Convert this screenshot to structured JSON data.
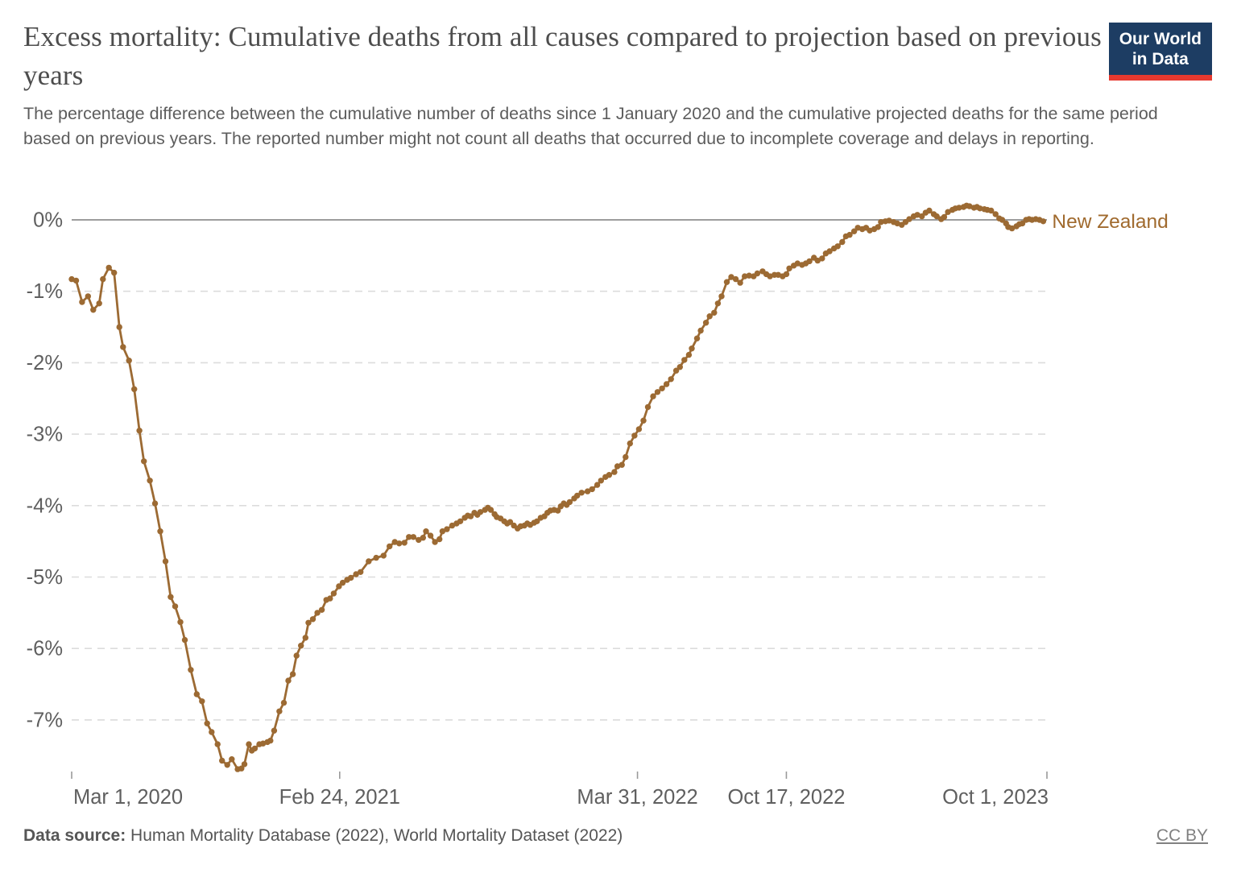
{
  "header": {
    "title": "Excess mortality: Cumulative deaths from all causes compared to projection based on previous years",
    "subtitle": "The percentage difference between the cumulative number of deaths since 1 January 2020 and the cumulative projected deaths for the same period based on previous years. The reported number might not count all deaths that occurred due to incomplete coverage and delays in reporting."
  },
  "logo": {
    "line1": "Our World",
    "line2": "in Data",
    "bg_color": "#1d3d63",
    "accent_color": "#e6392f"
  },
  "footer": {
    "data_source_label": "Data source:",
    "data_source_text": " Human Mortality Database (2022), World Mortality Dataset (2022)",
    "license": "CC BY"
  },
  "chart_data": {
    "type": "line",
    "title": "Excess mortality: Cumulative deaths from all causes compared to projection based on previous years",
    "xlabel": "",
    "ylabel": "",
    "x_unit": "days since 2020-03-01",
    "xlim_days": [
      0,
      1310
    ],
    "ylim": [
      -7.95,
      0.4
    ],
    "grid": "horizontal-dashed",
    "zero_line_color": "#8f8f8f",
    "grid_color": "#dcdcdc",
    "axis_text_color": "#5f5f5f",
    "y_ticks": [
      {
        "value": 0,
        "label": "0%"
      },
      {
        "value": -1,
        "label": "-1%"
      },
      {
        "value": -2,
        "label": "-2%"
      },
      {
        "value": -3,
        "label": "-3%"
      },
      {
        "value": -4,
        "label": "-4%"
      },
      {
        "value": -5,
        "label": "-5%"
      },
      {
        "value": -6,
        "label": "-6%"
      },
      {
        "value": -7,
        "label": "-7%"
      }
    ],
    "x_ticks": [
      {
        "day": 0,
        "label": "Mar 1, 2020",
        "anchor": "start"
      },
      {
        "day": 360,
        "label": "Feb 24, 2021",
        "anchor": "middle"
      },
      {
        "day": 760,
        "label": "Mar 31, 2022",
        "anchor": "middle"
      },
      {
        "day": 960,
        "label": "Oct 17, 2022",
        "anchor": "middle"
      },
      {
        "day": 1310,
        "label": "Oct 1, 2023",
        "anchor": "end"
      }
    ],
    "series": [
      {
        "name": "New Zealand",
        "color": "#9c6a33",
        "label_color": "#a06a2e",
        "points": [
          [
            0,
            -0.83
          ],
          [
            6,
            -0.85
          ],
          [
            14,
            -1.15
          ],
          [
            22,
            -1.07
          ],
          [
            29,
            -1.26
          ],
          [
            37,
            -1.17
          ],
          [
            42,
            -0.83
          ],
          [
            50,
            -0.67
          ],
          [
            57,
            -0.74
          ],
          [
            64,
            -1.5
          ],
          [
            69,
            -1.78
          ],
          [
            77,
            -1.97
          ],
          [
            84,
            -2.37
          ],
          [
            91,
            -2.95
          ],
          [
            97,
            -3.38
          ],
          [
            105,
            -3.65
          ],
          [
            112,
            -3.97
          ],
          [
            119,
            -4.36
          ],
          [
            126,
            -4.78
          ],
          [
            133,
            -5.28
          ],
          [
            139,
            -5.41
          ],
          [
            146,
            -5.63
          ],
          [
            152,
            -5.88
          ],
          [
            160,
            -6.3
          ],
          [
            168,
            -6.64
          ],
          [
            175,
            -6.74
          ],
          [
            182,
            -7.05
          ],
          [
            188,
            -7.17
          ],
          [
            196,
            -7.34
          ],
          [
            202,
            -7.57
          ],
          [
            209,
            -7.63
          ],
          [
            215,
            -7.55
          ],
          [
            223,
            -7.69
          ],
          [
            228,
            -7.68
          ],
          [
            232,
            -7.62
          ],
          [
            238,
            -7.34
          ],
          [
            242,
            -7.43
          ],
          [
            246,
            -7.4
          ],
          [
            252,
            -7.34
          ],
          [
            257,
            -7.33
          ],
          [
            263,
            -7.31
          ],
          [
            267,
            -7.29
          ],
          [
            272,
            -7.15
          ],
          [
            279,
            -6.88
          ],
          [
            285,
            -6.76
          ],
          [
            291,
            -6.45
          ],
          [
            297,
            -6.36
          ],
          [
            302,
            -6.1
          ],
          [
            308,
            -5.96
          ],
          [
            314,
            -5.85
          ],
          [
            318,
            -5.64
          ],
          [
            324,
            -5.59
          ],
          [
            330,
            -5.5
          ],
          [
            336,
            -5.46
          ],
          [
            342,
            -5.32
          ],
          [
            347,
            -5.3
          ],
          [
            352,
            -5.23
          ],
          [
            359,
            -5.13
          ],
          [
            364,
            -5.08
          ],
          [
            370,
            -5.04
          ],
          [
            375,
            -5.01
          ],
          [
            382,
            -4.96
          ],
          [
            388,
            -4.93
          ],
          [
            399,
            -4.78
          ],
          [
            409,
            -4.73
          ],
          [
            419,
            -4.7
          ],
          [
            427,
            -4.57
          ],
          [
            434,
            -4.51
          ],
          [
            440,
            -4.53
          ],
          [
            447,
            -4.52
          ],
          [
            453,
            -4.44
          ],
          [
            459,
            -4.44
          ],
          [
            466,
            -4.48
          ],
          [
            472,
            -4.45
          ],
          [
            476,
            -4.36
          ],
          [
            482,
            -4.42
          ],
          [
            488,
            -4.51
          ],
          [
            494,
            -4.47
          ],
          [
            498,
            -4.36
          ],
          [
            504,
            -4.33
          ],
          [
            511,
            -4.28
          ],
          [
            517,
            -4.25
          ],
          [
            522,
            -4.22
          ],
          [
            528,
            -4.17
          ],
          [
            532,
            -4.14
          ],
          [
            536,
            -4.15
          ],
          [
            541,
            -4.1
          ],
          [
            545,
            -4.13
          ],
          [
            549,
            -4.09
          ],
          [
            555,
            -4.06
          ],
          [
            559,
            -4.03
          ],
          [
            563,
            -4.06
          ],
          [
            568,
            -4.12
          ],
          [
            571,
            -4.16
          ],
          [
            576,
            -4.18
          ],
          [
            581,
            -4.22
          ],
          [
            585,
            -4.25
          ],
          [
            589,
            -4.23
          ],
          [
            594,
            -4.28
          ],
          [
            599,
            -4.32
          ],
          [
            603,
            -4.29
          ],
          [
            608,
            -4.28
          ],
          [
            612,
            -4.25
          ],
          [
            616,
            -4.27
          ],
          [
            621,
            -4.24
          ],
          [
            625,
            -4.22
          ],
          [
            630,
            -4.17
          ],
          [
            635,
            -4.15
          ],
          [
            639,
            -4.1
          ],
          [
            643,
            -4.07
          ],
          [
            648,
            -4.06
          ],
          [
            653,
            -4.07
          ],
          [
            657,
            -4.01
          ],
          [
            661,
            -3.97
          ],
          [
            665,
            -3.99
          ],
          [
            669,
            -3.95
          ],
          [
            675,
            -3.9
          ],
          [
            679,
            -3.86
          ],
          [
            685,
            -3.82
          ],
          [
            693,
            -3.8
          ],
          [
            699,
            -3.77
          ],
          [
            706,
            -3.71
          ],
          [
            711,
            -3.65
          ],
          [
            717,
            -3.6
          ],
          [
            722,
            -3.57
          ],
          [
            729,
            -3.53
          ],
          [
            733,
            -3.45
          ],
          [
            739,
            -3.43
          ],
          [
            744,
            -3.32
          ],
          [
            750,
            -3.13
          ],
          [
            756,
            -3.02
          ],
          [
            762,
            -2.93
          ],
          [
            768,
            -2.81
          ],
          [
            774,
            -2.62
          ],
          [
            781,
            -2.47
          ],
          [
            787,
            -2.41
          ],
          [
            793,
            -2.36
          ],
          [
            799,
            -2.3
          ],
          [
            805,
            -2.23
          ],
          [
            812,
            -2.11
          ],
          [
            817,
            -2.06
          ],
          [
            823,
            -1.96
          ],
          [
            829,
            -1.89
          ],
          [
            833,
            -1.8
          ],
          [
            840,
            -1.66
          ],
          [
            845,
            -1.55
          ],
          [
            852,
            -1.44
          ],
          [
            857,
            -1.35
          ],
          [
            863,
            -1.3
          ],
          [
            868,
            -1.17
          ],
          [
            873,
            -1.07
          ],
          [
            880,
            -0.87
          ],
          [
            886,
            -0.8
          ],
          [
            892,
            -0.83
          ],
          [
            898,
            -0.88
          ],
          [
            904,
            -0.79
          ],
          [
            910,
            -0.78
          ],
          [
            916,
            -0.79
          ],
          [
            921,
            -0.75
          ],
          [
            928,
            -0.72
          ],
          [
            933,
            -0.76
          ],
          [
            938,
            -0.79
          ],
          [
            944,
            -0.77
          ],
          [
            949,
            -0.77
          ],
          [
            955,
            -0.79
          ],
          [
            960,
            -0.76
          ],
          [
            964,
            -0.68
          ],
          [
            970,
            -0.64
          ],
          [
            975,
            -0.61
          ],
          [
            981,
            -0.63
          ],
          [
            986,
            -0.61
          ],
          [
            991,
            -0.58
          ],
          [
            997,
            -0.53
          ],
          [
            1002,
            -0.57
          ],
          [
            1008,
            -0.54
          ],
          [
            1013,
            -0.47
          ],
          [
            1018,
            -0.44
          ],
          [
            1024,
            -0.4
          ],
          [
            1029,
            -0.37
          ],
          [
            1035,
            -0.31
          ],
          [
            1040,
            -0.23
          ],
          [
            1045,
            -0.21
          ],
          [
            1051,
            -0.16
          ],
          [
            1056,
            -0.11
          ],
          [
            1062,
            -0.13
          ],
          [
            1067,
            -0.11
          ],
          [
            1072,
            -0.15
          ],
          [
            1078,
            -0.13
          ],
          [
            1083,
            -0.1
          ],
          [
            1087,
            -0.03
          ],
          [
            1093,
            -0.02
          ],
          [
            1098,
            -0.01
          ],
          [
            1104,
            -0.03
          ],
          [
            1109,
            -0.05
          ],
          [
            1115,
            -0.07
          ],
          [
            1120,
            -0.03
          ],
          [
            1125,
            0.01
          ],
          [
            1131,
            0.05
          ],
          [
            1136,
            0.07
          ],
          [
            1142,
            0.05
          ],
          [
            1147,
            0.1
          ],
          [
            1152,
            0.13
          ],
          [
            1158,
            0.08
          ],
          [
            1162,
            0.05
          ],
          [
            1168,
            0.01
          ],
          [
            1172,
            0.04
          ],
          [
            1177,
            0.11
          ],
          [
            1183,
            0.14
          ],
          [
            1187,
            0.16
          ],
          [
            1192,
            0.17
          ],
          [
            1198,
            0.18
          ],
          [
            1202,
            0.2
          ],
          [
            1206,
            0.19
          ],
          [
            1212,
            0.17
          ],
          [
            1216,
            0.18
          ],
          [
            1220,
            0.16
          ],
          [
            1226,
            0.15
          ],
          [
            1230,
            0.14
          ],
          [
            1235,
            0.13
          ],
          [
            1241,
            0.08
          ],
          [
            1246,
            0.02
          ],
          [
            1250,
            0
          ],
          [
            1255,
            -0.05
          ],
          [
            1258,
            -0.1
          ],
          [
            1263,
            -0.12
          ],
          [
            1269,
            -0.09
          ],
          [
            1273,
            -0.06
          ],
          [
            1277,
            -0.05
          ],
          [
            1282,
            0
          ],
          [
            1286,
            0.01
          ],
          [
            1290,
            0
          ],
          [
            1295,
            0.01
          ],
          [
            1300,
            0
          ],
          [
            1305,
            -0.02
          ]
        ]
      }
    ],
    "legend_position": "end-of-line-label"
  }
}
